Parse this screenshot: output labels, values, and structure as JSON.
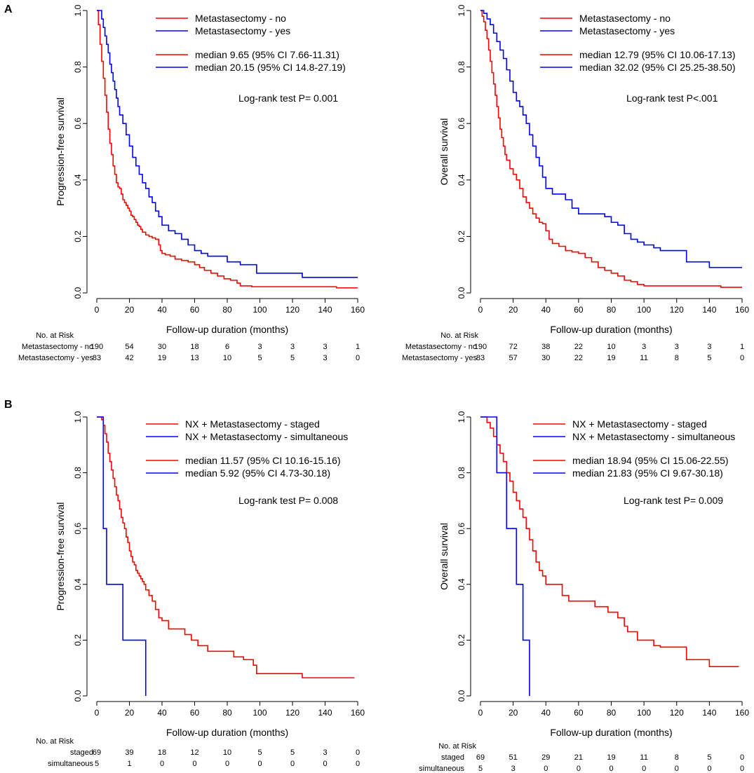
{
  "panels": [
    {
      "label": "A",
      "risk_header": "No. at Risk"
    },
    {
      "label": "B",
      "risk_header": "No. at Risk"
    }
  ],
  "colors": {
    "red": "#ff0000",
    "blue": "#0000ff"
  },
  "chart_data": [
    {
      "type": "line",
      "title": "",
      "xlabel": "Follow-up duration (months)",
      "ylabel": "Progression-free survival",
      "xlim": [
        0,
        160
      ],
      "ylim": [
        0,
        1
      ],
      "xticks": [
        "0",
        "20",
        "40",
        "60",
        "80",
        "100",
        "120",
        "140",
        "160"
      ],
      "yticks": [
        "0.0",
        "0.2",
        "0.4",
        "0.6",
        "0.8",
        "1.0"
      ],
      "legend": [
        "Metastasectomy - no",
        "Metastasectomy - yes"
      ],
      "medians": [
        "median 9.65   (95% CI 7.66-11.31)",
        "median 20.15 (95% CI 14.8-27.19)"
      ],
      "logrank": "Log-rank test  P= 0.001",
      "series": [
        {
          "name": "Metastasectomy - no",
          "color": "red",
          "x": [
            0,
            1,
            2,
            3,
            4,
            5,
            6,
            7,
            8,
            9,
            10,
            11,
            12,
            13,
            14,
            15,
            16,
            17,
            18,
            19,
            20,
            21,
            22,
            23,
            24,
            25,
            26,
            27,
            28,
            30,
            32,
            34,
            36,
            38,
            39,
            40,
            42,
            45,
            48,
            52,
            56,
            60,
            63,
            66,
            70,
            74,
            78,
            82,
            86,
            88,
            95,
            100,
            110,
            125,
            140,
            147,
            160
          ],
          "y": [
            1.0,
            0.95,
            0.88,
            0.82,
            0.76,
            0.7,
            0.64,
            0.58,
            0.53,
            0.49,
            0.45,
            0.42,
            0.39,
            0.375,
            0.37,
            0.35,
            0.33,
            0.32,
            0.31,
            0.3,
            0.29,
            0.275,
            0.27,
            0.26,
            0.25,
            0.24,
            0.235,
            0.225,
            0.215,
            0.205,
            0.2,
            0.195,
            0.19,
            0.17,
            0.15,
            0.14,
            0.135,
            0.13,
            0.12,
            0.115,
            0.11,
            0.1,
            0.09,
            0.08,
            0.07,
            0.06,
            0.05,
            0.045,
            0.035,
            0.025,
            0.022,
            0.022,
            0.022,
            0.022,
            0.022,
            0.018,
            0.018
          ]
        },
        {
          "name": "Metastasectomy - yes",
          "color": "blue",
          "x": [
            0,
            2,
            3,
            4,
            5,
            6,
            7,
            8,
            9,
            10,
            11,
            12,
            13,
            14,
            16,
            18,
            20,
            22,
            24,
            26,
            28,
            30,
            32,
            34,
            36,
            38,
            40,
            44,
            48,
            52,
            56,
            60,
            64,
            68,
            74,
            80,
            88,
            90,
            98,
            100,
            110,
            126,
            140,
            150,
            160
          ],
          "y": [
            1.0,
            1.0,
            0.97,
            0.94,
            0.91,
            0.88,
            0.85,
            0.81,
            0.78,
            0.75,
            0.72,
            0.69,
            0.66,
            0.63,
            0.6,
            0.56,
            0.52,
            0.48,
            0.45,
            0.42,
            0.39,
            0.37,
            0.34,
            0.32,
            0.29,
            0.27,
            0.24,
            0.22,
            0.21,
            0.19,
            0.17,
            0.15,
            0.14,
            0.13,
            0.13,
            0.11,
            0.1,
            0.1,
            0.07,
            0.07,
            0.07,
            0.055,
            0.055,
            0.055,
            0.055
          ]
        }
      ],
      "risk_table": {
        "times": [
          "0",
          "20",
          "40",
          "60",
          "80",
          "100",
          "120",
          "140",
          "160"
        ],
        "rows": [
          {
            "label": "Metastasectomy - no",
            "values": [
              "190",
              "54",
              "30",
              "18",
              "6",
              "3",
              "3",
              "3",
              "1"
            ]
          },
          {
            "label": "Metastasectomy - yes",
            "values": [
              "83",
              "42",
              "19",
              "13",
              "10",
              "5",
              "5",
              "3",
              "0"
            ]
          }
        ]
      }
    },
    {
      "type": "line",
      "title": "",
      "xlabel": "Follow-up duration (months)",
      "ylabel": "Overall survival",
      "xlim": [
        0,
        160
      ],
      "ylim": [
        0,
        1
      ],
      "xticks": [
        "0",
        "20",
        "40",
        "60",
        "80",
        "100",
        "120",
        "140",
        "160"
      ],
      "yticks": [
        "0.0",
        "0.2",
        "0.4",
        "0.6",
        "0.8",
        "1.0"
      ],
      "legend": [
        "Metastasectomy - no",
        "Metastasectomy - yes"
      ],
      "medians": [
        "median 12.79 (95% CI 10.06-17.13)",
        "median 32.02 (95% CI 25.25-38.50)"
      ],
      "logrank": "Log-rank test  P<.001",
      "series": [
        {
          "name": "Metastasectomy - no",
          "color": "red",
          "x": [
            0,
            1,
            2,
            3,
            4,
            5,
            6,
            7,
            8,
            9,
            10,
            11,
            12,
            13,
            14,
            15,
            16,
            18,
            20,
            22,
            24,
            26,
            28,
            30,
            32,
            34,
            36,
            38,
            40,
            42,
            44,
            48,
            52,
            56,
            60,
            64,
            68,
            72,
            76,
            80,
            84,
            88,
            92,
            96,
            100,
            110,
            125,
            140,
            147,
            160
          ],
          "y": [
            1.0,
            0.98,
            0.96,
            0.93,
            0.9,
            0.86,
            0.82,
            0.78,
            0.74,
            0.7,
            0.66,
            0.62,
            0.58,
            0.55,
            0.52,
            0.49,
            0.47,
            0.44,
            0.42,
            0.4,
            0.37,
            0.34,
            0.32,
            0.3,
            0.28,
            0.265,
            0.25,
            0.245,
            0.22,
            0.19,
            0.175,
            0.165,
            0.15,
            0.145,
            0.14,
            0.125,
            0.11,
            0.09,
            0.08,
            0.07,
            0.06,
            0.045,
            0.04,
            0.03,
            0.025,
            0.025,
            0.025,
            0.025,
            0.02,
            0.02
          ]
        },
        {
          "name": "Metastasectomy - yes",
          "color": "blue",
          "x": [
            0,
            2,
            4,
            6,
            8,
            10,
            12,
            14,
            16,
            18,
            20,
            22,
            24,
            26,
            28,
            30,
            32,
            34,
            36,
            38,
            40,
            44,
            48,
            52,
            56,
            60,
            70,
            76,
            80,
            84,
            88,
            92,
            96,
            100,
            106,
            110,
            124,
            126,
            140,
            160
          ],
          "y": [
            1.0,
            0.99,
            0.97,
            0.95,
            0.92,
            0.89,
            0.86,
            0.83,
            0.79,
            0.75,
            0.71,
            0.68,
            0.66,
            0.63,
            0.6,
            0.56,
            0.52,
            0.48,
            0.45,
            0.41,
            0.37,
            0.35,
            0.35,
            0.33,
            0.3,
            0.28,
            0.28,
            0.27,
            0.25,
            0.24,
            0.21,
            0.19,
            0.18,
            0.17,
            0.16,
            0.15,
            0.15,
            0.11,
            0.09,
            0.09
          ]
        }
      ],
      "risk_table": {
        "times": [
          "0",
          "20",
          "40",
          "60",
          "80",
          "100",
          "120",
          "140",
          "160"
        ],
        "rows": [
          {
            "label": "Metastasectomy - no",
            "values": [
              "190",
              "72",
              "38",
              "22",
              "10",
              "3",
              "3",
              "3",
              "1"
            ]
          },
          {
            "label": "Metastasectomy - yes",
            "values": [
              "83",
              "57",
              "30",
              "22",
              "19",
              "11",
              "8",
              "5",
              "0"
            ]
          }
        ]
      }
    },
    {
      "type": "line",
      "title": "",
      "xlabel": "Follow-up duration (months)",
      "ylabel": "Progression-free survival",
      "xlim": [
        0,
        160
      ],
      "ylim": [
        0,
        1
      ],
      "xticks": [
        "0",
        "20",
        "40",
        "60",
        "80",
        "100",
        "120",
        "140",
        "160"
      ],
      "yticks": [
        "0.0",
        "0.2",
        "0.4",
        "0.6",
        "0.8",
        "1.0"
      ],
      "legend": [
        "NX + Metastasectomy - staged",
        "NX + Metastasectomy - simultaneous"
      ],
      "medians": [
        "median 11.57 (95% CI 10.16-15.16)",
        "median   5.92 (95% CI 4.73-30.18)"
      ],
      "logrank": "Log-rank test  P= 0.008",
      "series": [
        {
          "name": "NX + Metastasectomy - staged",
          "color": "red",
          "x": [
            0,
            3,
            4,
            5,
            6,
            7,
            8,
            9,
            10,
            11,
            12,
            13,
            14,
            15,
            16,
            17,
            18,
            19,
            20,
            21,
            22,
            23,
            24,
            25,
            26,
            27,
            28,
            29,
            30,
            32,
            34,
            36,
            38,
            40,
            44,
            50,
            54,
            58,
            62,
            68,
            74,
            84,
            90,
            96,
            98,
            110,
            126,
            140,
            158
          ],
          "y": [
            1.0,
            0.99,
            0.97,
            0.94,
            0.91,
            0.87,
            0.84,
            0.81,
            0.78,
            0.75,
            0.72,
            0.7,
            0.67,
            0.64,
            0.62,
            0.6,
            0.57,
            0.55,
            0.52,
            0.5,
            0.48,
            0.47,
            0.45,
            0.44,
            0.43,
            0.42,
            0.41,
            0.4,
            0.38,
            0.36,
            0.34,
            0.31,
            0.28,
            0.27,
            0.24,
            0.24,
            0.22,
            0.2,
            0.18,
            0.16,
            0.16,
            0.14,
            0.13,
            0.11,
            0.08,
            0.08,
            0.065,
            0.065,
            0.065
          ]
        },
        {
          "name": "NX + Metastasectomy - simultaneous",
          "color": "blue",
          "x": [
            0,
            4,
            6,
            16,
            30,
            30
          ],
          "y": [
            1.0,
            0.6,
            0.4,
            0.2,
            0.2,
            0.0
          ]
        }
      ],
      "risk_table": {
        "times": [
          "0",
          "20",
          "40",
          "60",
          "80",
          "100",
          "120",
          "140",
          "160"
        ],
        "rows": [
          {
            "label": "staged",
            "values": [
              "69",
              "39",
              "18",
              "12",
              "10",
              "5",
              "5",
              "3",
              "0"
            ]
          },
          {
            "label": "simultaneous",
            "values": [
              "5",
              "1",
              "0",
              "0",
              "0",
              "0",
              "0",
              "0",
              "0"
            ]
          }
        ]
      }
    },
    {
      "type": "line",
      "title": "",
      "xlabel": "Follow-up duration (months)",
      "ylabel": "Overall survival",
      "xlim": [
        0,
        160
      ],
      "ylim": [
        0,
        1
      ],
      "xticks": [
        "0",
        "20",
        "40",
        "60",
        "80",
        "100",
        "120",
        "140",
        "160"
      ],
      "yticks": [
        "0.0",
        "0.2",
        "0.4",
        "0.6",
        "0.8",
        "1.0"
      ],
      "legend": [
        "NX + Metastasectomy - staged",
        "NX + Metastasectomy - simultaneous"
      ],
      "medians": [
        "median 18.94 (95% CI 15.06-22.55)",
        "median 21.83 (95% CI 9.67-30.18)"
      ],
      "logrank": "Log-rank test  P= 0.009",
      "series": [
        {
          "name": "NX + Metastasectomy - staged",
          "color": "red",
          "x": [
            0,
            4,
            6,
            8,
            10,
            12,
            14,
            16,
            18,
            20,
            22,
            24,
            26,
            28,
            30,
            32,
            34,
            36,
            38,
            40,
            44,
            50,
            54,
            58,
            62,
            70,
            78,
            84,
            88,
            90,
            96,
            100,
            106,
            110,
            124,
            126,
            140,
            158
          ],
          "y": [
            1.0,
            0.98,
            0.96,
            0.93,
            0.9,
            0.87,
            0.84,
            0.8,
            0.77,
            0.73,
            0.7,
            0.67,
            0.64,
            0.6,
            0.56,
            0.52,
            0.48,
            0.45,
            0.43,
            0.4,
            0.4,
            0.36,
            0.34,
            0.34,
            0.34,
            0.32,
            0.3,
            0.28,
            0.25,
            0.23,
            0.2,
            0.2,
            0.18,
            0.175,
            0.175,
            0.13,
            0.105,
            0.105
          ]
        },
        {
          "name": "NX + Metastasectomy - simultaneous",
          "color": "blue",
          "x": [
            0,
            10,
            16,
            22,
            26,
            30,
            30
          ],
          "y": [
            1.0,
            0.8,
            0.6,
            0.4,
            0.2,
            0.2,
            0.0
          ]
        }
      ],
      "risk_table": {
        "times": [
          "0",
          "20",
          "40",
          "60",
          "80",
          "100",
          "120",
          "140",
          "160"
        ],
        "rows": [
          {
            "label": "staged",
            "values": [
              "69",
              "51",
              "29",
              "21",
              "19",
              "11",
              "8",
              "5",
              "0"
            ]
          },
          {
            "label": "simultaneous",
            "values": [
              "5",
              "3",
              "0",
              "0",
              "0",
              "0",
              "0",
              "0",
              "0"
            ]
          }
        ]
      }
    }
  ]
}
